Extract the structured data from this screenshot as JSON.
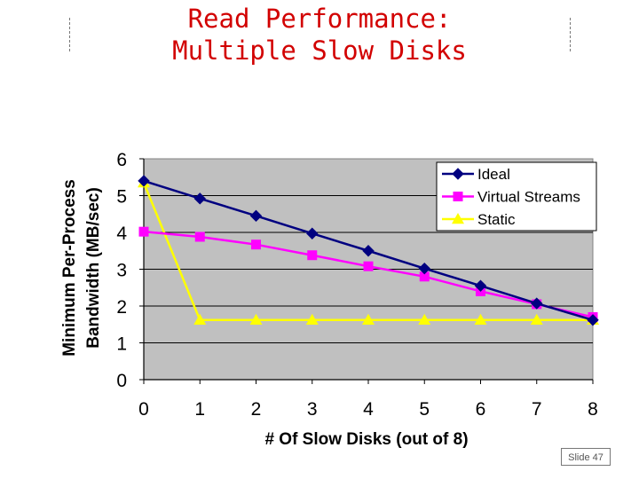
{
  "slide": {
    "title_line1": "Read Performance:",
    "title_line2": "Multiple Slow Disks",
    "slide_number": "Slide 47"
  },
  "chart_data": {
    "type": "line",
    "x": [
      0,
      1,
      2,
      3,
      4,
      5,
      6,
      7,
      8
    ],
    "xlabel": "# Of Slow Disks (out of 8)",
    "ylabel_line1": "Minimum Per-Process",
    "ylabel_line2": "Bandwidth (MB/sec)",
    "xlim": [
      0,
      8
    ],
    "ylim": [
      0,
      6
    ],
    "xticks": [
      "0",
      "1",
      "2",
      "3",
      "4",
      "5",
      "6",
      "7",
      "8"
    ],
    "yticks": [
      "0",
      "1",
      "2",
      "3",
      "4",
      "5",
      "6"
    ],
    "grid": true,
    "legend": "top-right",
    "plot_background": "#c0c0c0",
    "series": [
      {
        "name": "Ideal",
        "color": "#000080",
        "marker": "diamond",
        "values": [
          5.4,
          4.92,
          4.45,
          3.97,
          3.5,
          3.02,
          2.55,
          2.07,
          1.62
        ]
      },
      {
        "name": "Virtual Streams",
        "color": "#ff00ff",
        "marker": "square",
        "values": [
          4.02,
          3.88,
          3.67,
          3.38,
          3.08,
          2.8,
          2.4,
          2.05,
          1.7
        ]
      },
      {
        "name": "Static",
        "color": "#ffff00",
        "marker": "triangle",
        "values": [
          5.35,
          1.62,
          1.62,
          1.62,
          1.62,
          1.62,
          1.62,
          1.62,
          1.62
        ]
      }
    ]
  }
}
